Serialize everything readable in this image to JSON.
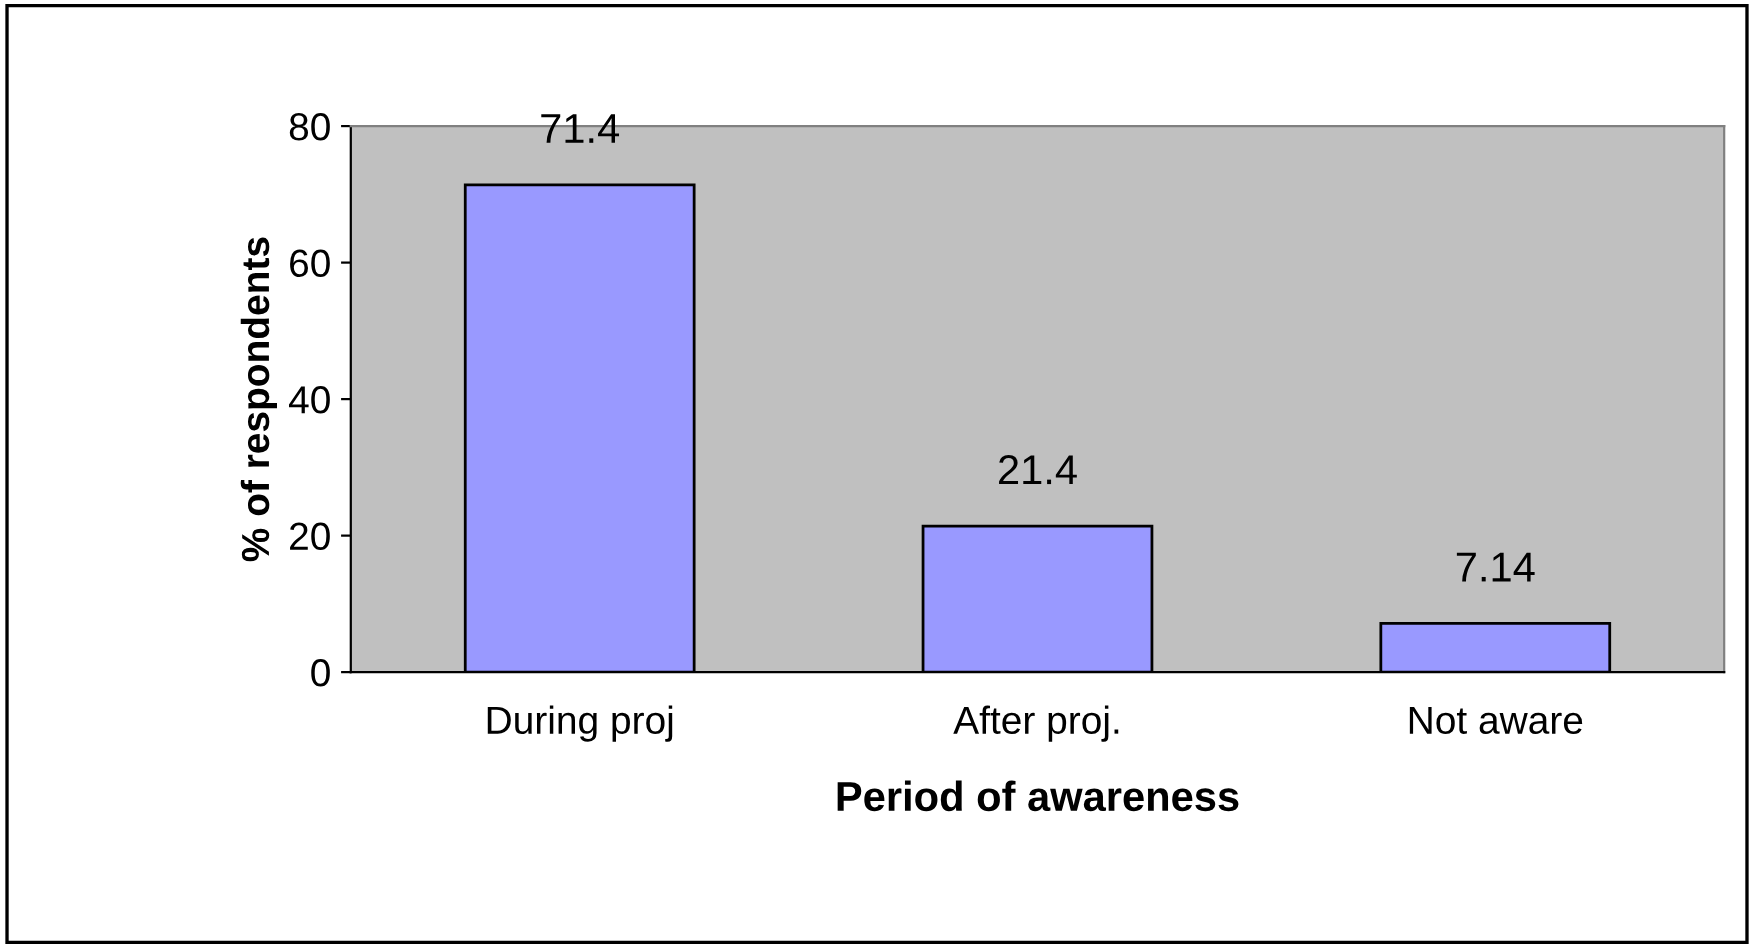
{
  "chart_data": {
    "type": "bar",
    "xlabel": "Period of awareness",
    "ylabel": "% of respondents",
    "categories": [
      "During proj",
      "After proj.",
      "Not aware"
    ],
    "values": [
      71.4,
      21.4,
      7.14
    ],
    "color": "#9999ff",
    "ylim": [
      0,
      80
    ],
    "yticks": [
      0,
      20,
      40,
      60,
      80
    ],
    "data_labels": true,
    "grid": false,
    "legend": false
  }
}
